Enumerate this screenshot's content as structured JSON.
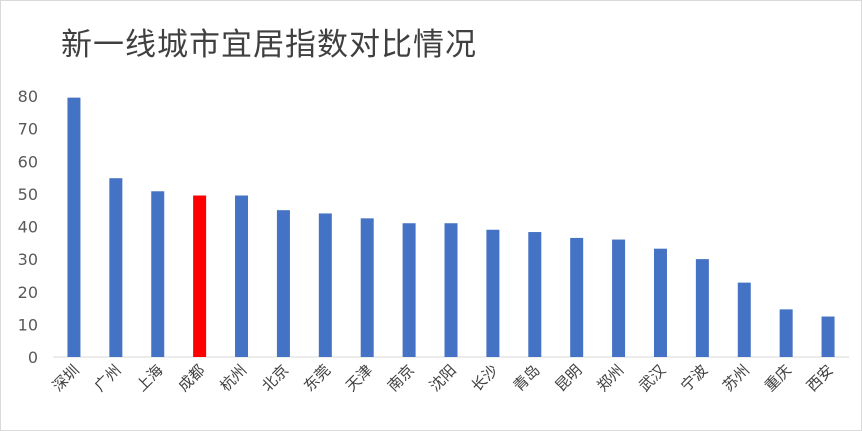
{
  "chart_data": {
    "type": "bar",
    "title": "新一线城市宜居指数对比情况",
    "xlabel": "",
    "ylabel": "",
    "ylim": [
      0,
      80
    ],
    "yticks": [
      0,
      10,
      20,
      30,
      40,
      50,
      60,
      70,
      80
    ],
    "grid": false,
    "legend": "none",
    "categories": [
      "深圳",
      "广州",
      "上海",
      "成都",
      "杭州",
      "北京",
      "东莞",
      "天津",
      "南京",
      "沈阳",
      "长沙",
      "青岛",
      "昆明",
      "郑州",
      "武汉",
      "宁波",
      "苏州",
      "重庆",
      "西安"
    ],
    "values": [
      79.5,
      54.8,
      50.8,
      49.5,
      49.5,
      45,
      44,
      42.5,
      41,
      41,
      39,
      38.3,
      36.5,
      36,
      33.2,
      30,
      22.8,
      14.6,
      12.4
    ],
    "bar_color": "#4472c4",
    "highlight_color": "#ff0000",
    "highlight_category": "成都"
  }
}
